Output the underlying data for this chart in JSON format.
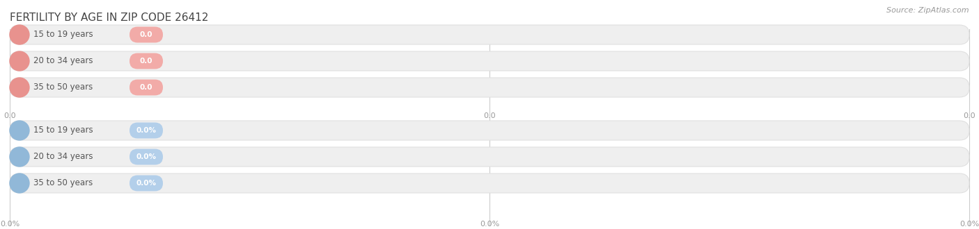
{
  "title": "FERTILITY BY AGE IN ZIP CODE 26412",
  "source": "Source: ZipAtlas.com",
  "background_color": "#ffffff",
  "groups": [
    {
      "rows": [
        {
          "label": "15 to 19 years",
          "value_str": "0.0"
        },
        {
          "label": "20 to 34 years",
          "value_str": "0.0"
        },
        {
          "label": "35 to 50 years",
          "value_str": "0.0"
        }
      ],
      "circle_color": "#e8928e",
      "badge_color": "#f2aba8",
      "axis_ticks": [
        "0.0",
        "0.0",
        "0.0"
      ]
    },
    {
      "rows": [
        {
          "label": "15 to 19 years",
          "value_str": "0.0%"
        },
        {
          "label": "20 to 34 years",
          "value_str": "0.0%"
        },
        {
          "label": "35 to 50 years",
          "value_str": "0.0%"
        }
      ],
      "circle_color": "#91b8d8",
      "badge_color": "#b3cfea",
      "axis_ticks": [
        "0.0%",
        "0.0%",
        "0.0%"
      ]
    }
  ],
  "bar_bg_color": "#efefef",
  "bar_border_color": "#e0e0e0",
  "label_fontsize": 8.5,
  "value_fontsize": 7.5,
  "title_fontsize": 11,
  "source_fontsize": 8,
  "tick_fontsize": 8,
  "tick_color": "#999999",
  "label_color": "#555555",
  "value_text_color": "#ffffff",
  "grid_color": "#cccccc"
}
